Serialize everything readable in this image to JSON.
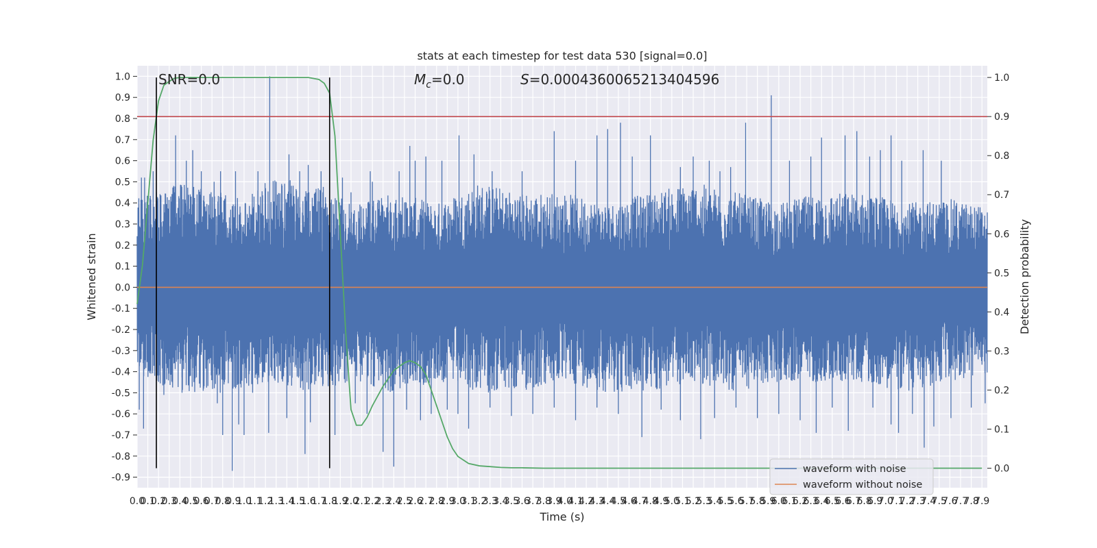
{
  "chart_data": {
    "type": "line",
    "title": "stats at each timestep for test data 530 [signal=0.0]",
    "xlabel": "Time (s)",
    "ylabel": "Whitened strain",
    "y2label": "Detection probability",
    "xlim": [
      0.0,
      7.95
    ],
    "ylim": [
      -0.95,
      1.05
    ],
    "y2lim": [
      -0.05,
      1.03
    ],
    "x_ticks": [
      0.0,
      0.1,
      0.2,
      0.3,
      0.4,
      0.5,
      0.6,
      0.7,
      0.8,
      0.9,
      1.0,
      1.1,
      1.2,
      1.3,
      1.4,
      1.5,
      1.6,
      1.7,
      1.8,
      1.9,
      2.0,
      2.1,
      2.2,
      2.3,
      2.4,
      2.5,
      2.6,
      2.7,
      2.8,
      2.9,
      3.0,
      3.1,
      3.2,
      3.3,
      3.4,
      3.5,
      3.6,
      3.7,
      3.8,
      3.9,
      4.0,
      4.1,
      4.2,
      4.3,
      4.4,
      4.5,
      4.6,
      4.7,
      4.8,
      4.9,
      5.0,
      5.1,
      5.2,
      5.3,
      5.4,
      5.5,
      5.6,
      5.7,
      5.8,
      5.9,
      6.0,
      6.1,
      6.2,
      6.3,
      6.4,
      6.5,
      6.6,
      6.7,
      6.8,
      6.9,
      7.0,
      7.1,
      7.2,
      7.3,
      7.4,
      7.5,
      7.6,
      7.7,
      7.8,
      7.9
    ],
    "y_ticks": [
      -0.9,
      -0.8,
      -0.7,
      -0.6,
      -0.5,
      -0.4,
      -0.3,
      -0.2,
      -0.1,
      0.0,
      0.1,
      0.2,
      0.3,
      0.4,
      0.5,
      0.6,
      0.7,
      0.8,
      0.9,
      1.0
    ],
    "y2_ticks": [
      0.0,
      0.1,
      0.2,
      0.3,
      0.4,
      0.5,
      0.6,
      0.7,
      0.8,
      0.9,
      1.0
    ],
    "grid": true,
    "legend_position": "lower-right",
    "annotations": {
      "snr": "SNR=0.0",
      "mc_symbol": "M",
      "mc_sub": "c",
      "mc_value": "=0.0",
      "s_symbol": "S",
      "s_value": "=0.0004360065213404596"
    },
    "vlines_x": [
      0.18,
      1.8
    ],
    "threshold_y2": 0.9,
    "series": [
      {
        "name": "waveform with noise",
        "color": "#4c72b0",
        "kind": "noise",
        "envelope_upper": [
          [
            0.0,
            0.42
          ],
          [
            0.2,
            0.45
          ],
          [
            0.4,
            0.5
          ],
          [
            0.6,
            0.48
          ],
          [
            0.8,
            0.45
          ],
          [
            1.0,
            0.42
          ],
          [
            1.2,
            0.5
          ],
          [
            1.4,
            0.52
          ],
          [
            1.6,
            0.45
          ],
          [
            1.8,
            0.5
          ],
          [
            2.0,
            0.4
          ],
          [
            2.4,
            0.45
          ],
          [
            2.8,
            0.4
          ],
          [
            3.2,
            0.5
          ],
          [
            3.6,
            0.45
          ],
          [
            4.0,
            0.45
          ],
          [
            4.4,
            0.4
          ],
          [
            4.8,
            0.45
          ],
          [
            5.2,
            0.5
          ],
          [
            5.6,
            0.45
          ],
          [
            6.0,
            0.4
          ],
          [
            6.4,
            0.45
          ],
          [
            6.8,
            0.45
          ],
          [
            7.2,
            0.4
          ],
          [
            7.6,
            0.42
          ],
          [
            7.95,
            0.38
          ]
        ],
        "envelope_lower": [
          [
            0.0,
            -0.42
          ],
          [
            0.4,
            -0.5
          ],
          [
            0.8,
            -0.5
          ],
          [
            1.2,
            -0.45
          ],
          [
            1.6,
            -0.5
          ],
          [
            2.0,
            -0.45
          ],
          [
            2.4,
            -0.5
          ],
          [
            2.8,
            -0.45
          ],
          [
            3.2,
            -0.5
          ],
          [
            3.6,
            -0.5
          ],
          [
            4.0,
            -0.45
          ],
          [
            4.4,
            -0.5
          ],
          [
            4.8,
            -0.5
          ],
          [
            5.2,
            -0.45
          ],
          [
            5.6,
            -0.5
          ],
          [
            6.0,
            -0.45
          ],
          [
            6.4,
            -0.45
          ],
          [
            6.8,
            -0.45
          ],
          [
            7.2,
            -0.5
          ],
          [
            7.6,
            -0.45
          ],
          [
            7.95,
            -0.42
          ]
        ],
        "peaks": [
          [
            0.04,
            0.52
          ],
          [
            0.07,
            0.52
          ],
          [
            0.15,
            0.55
          ],
          [
            0.18,
            0.45
          ],
          [
            0.36,
            0.72
          ],
          [
            0.46,
            0.6
          ],
          [
            0.52,
            0.65
          ],
          [
            0.6,
            0.55
          ],
          [
            0.72,
            0.5
          ],
          [
            0.78,
            0.55
          ],
          [
            0.92,
            0.55
          ],
          [
            1.13,
            0.55
          ],
          [
            1.24,
            1.0
          ],
          [
            1.3,
            0.5
          ],
          [
            1.42,
            0.63
          ],
          [
            1.52,
            0.55
          ],
          [
            1.6,
            0.58
          ],
          [
            1.72,
            0.55
          ],
          [
            1.92,
            0.52
          ],
          [
            2.0,
            0.45
          ],
          [
            2.18,
            0.55
          ],
          [
            2.2,
            0.5
          ],
          [
            2.45,
            0.55
          ],
          [
            2.55,
            0.67
          ],
          [
            2.6,
            0.6
          ],
          [
            2.7,
            0.62
          ],
          [
            2.85,
            0.6
          ],
          [
            3.01,
            0.72
          ],
          [
            3.15,
            0.63
          ],
          [
            3.32,
            0.55
          ],
          [
            3.6,
            0.55
          ],
          [
            3.9,
            0.74
          ],
          [
            4.1,
            0.6
          ],
          [
            4.3,
            0.72
          ],
          [
            4.4,
            0.75
          ],
          [
            4.52,
            0.78
          ],
          [
            4.63,
            0.62
          ],
          [
            4.8,
            0.72
          ],
          [
            5.08,
            0.57
          ],
          [
            5.2,
            0.62
          ],
          [
            5.35,
            0.6
          ],
          [
            5.45,
            0.55
          ],
          [
            5.55,
            0.57
          ],
          [
            5.69,
            0.78
          ],
          [
            5.93,
            0.91
          ],
          [
            6.1,
            0.6
          ],
          [
            6.3,
            0.62
          ],
          [
            6.4,
            0.71
          ],
          [
            6.62,
            0.72
          ],
          [
            6.73,
            0.74
          ],
          [
            6.85,
            0.62
          ],
          [
            6.95,
            0.65
          ],
          [
            7.05,
            0.72
          ],
          [
            7.15,
            0.6
          ],
          [
            7.35,
            0.65
          ],
          [
            7.52,
            0.6
          ]
        ],
        "troughs": [
          [
            0.02,
            -0.58
          ],
          [
            0.06,
            -0.67
          ],
          [
            0.2,
            -0.4
          ],
          [
            0.25,
            -0.51
          ],
          [
            0.42,
            -0.5
          ],
          [
            0.75,
            -0.55
          ],
          [
            0.8,
            -0.7
          ],
          [
            0.89,
            -0.87
          ],
          [
            0.95,
            -0.65
          ],
          [
            1.0,
            -0.7
          ],
          [
            1.08,
            -0.5
          ],
          [
            1.23,
            -0.69
          ],
          [
            1.4,
            -0.62
          ],
          [
            1.57,
            -0.79
          ],
          [
            1.62,
            -0.64
          ],
          [
            1.85,
            -0.7
          ],
          [
            2.04,
            -0.55
          ],
          [
            2.15,
            -0.6
          ],
          [
            2.3,
            -0.78
          ],
          [
            2.4,
            -0.85
          ],
          [
            2.52,
            -0.58
          ],
          [
            2.65,
            -0.63
          ],
          [
            2.75,
            -0.6
          ],
          [
            2.9,
            -0.58
          ],
          [
            3.0,
            -0.6
          ],
          [
            3.1,
            -0.67
          ],
          [
            3.3,
            -0.57
          ],
          [
            3.5,
            -0.61
          ],
          [
            3.7,
            -0.6
          ],
          [
            3.9,
            -0.57
          ],
          [
            4.1,
            -0.63
          ],
          [
            4.3,
            -0.57
          ],
          [
            4.5,
            -0.6
          ],
          [
            4.72,
            -0.71
          ],
          [
            4.9,
            -0.58
          ],
          [
            5.08,
            -0.63
          ],
          [
            5.27,
            -0.72
          ],
          [
            5.4,
            -0.62
          ],
          [
            5.6,
            -0.57
          ],
          [
            5.8,
            -0.62
          ],
          [
            6.0,
            -0.6
          ],
          [
            6.2,
            -0.63
          ],
          [
            6.35,
            -0.69
          ],
          [
            6.5,
            -0.57
          ],
          [
            6.65,
            -0.68
          ],
          [
            6.88,
            -0.57
          ],
          [
            7.05,
            -0.65
          ],
          [
            7.12,
            -0.69
          ],
          [
            7.25,
            -0.6
          ],
          [
            7.36,
            -0.76
          ],
          [
            7.45,
            -0.66
          ],
          [
            7.61,
            -0.62
          ],
          [
            7.8,
            -0.57
          ],
          [
            7.93,
            -0.55
          ]
        ]
      },
      {
        "name": "waveform without noise",
        "color": "#dd8452",
        "x": [
          0.0,
          7.95
        ],
        "values": [
          0.0,
          0.0
        ]
      },
      {
        "name": "detection probability",
        "color": "#55a868",
        "axis": "right",
        "x": [
          0.0,
          0.05,
          0.1,
          0.15,
          0.2,
          0.25,
          0.3,
          0.35,
          0.4,
          0.5,
          0.6,
          0.8,
          1.0,
          1.2,
          1.4,
          1.6,
          1.7,
          1.75,
          1.8,
          1.85,
          1.9,
          1.95,
          2.0,
          2.05,
          2.1,
          2.15,
          2.2,
          2.3,
          2.4,
          2.5,
          2.55,
          2.6,
          2.65,
          2.7,
          2.75,
          2.8,
          2.85,
          2.9,
          2.95,
          3.0,
          3.1,
          3.2,
          3.3,
          3.4,
          3.5,
          3.6,
          3.8,
          4.0,
          5.0,
          6.0,
          7.0,
          7.9
        ],
        "values": [
          0.42,
          0.52,
          0.68,
          0.84,
          0.94,
          0.98,
          0.99,
          0.998,
          1.0,
          1.0,
          1.0,
          1.0,
          1.0,
          1.0,
          1.0,
          1.0,
          0.995,
          0.985,
          0.96,
          0.85,
          0.6,
          0.35,
          0.15,
          0.11,
          0.11,
          0.13,
          0.16,
          0.21,
          0.25,
          0.27,
          0.275,
          0.27,
          0.26,
          0.24,
          0.2,
          0.16,
          0.12,
          0.08,
          0.05,
          0.03,
          0.012,
          0.006,
          0.004,
          0.002,
          0.001,
          0.001,
          0.0,
          0.0,
          0.0,
          0.0,
          0.0,
          0.0
        ]
      }
    ]
  }
}
